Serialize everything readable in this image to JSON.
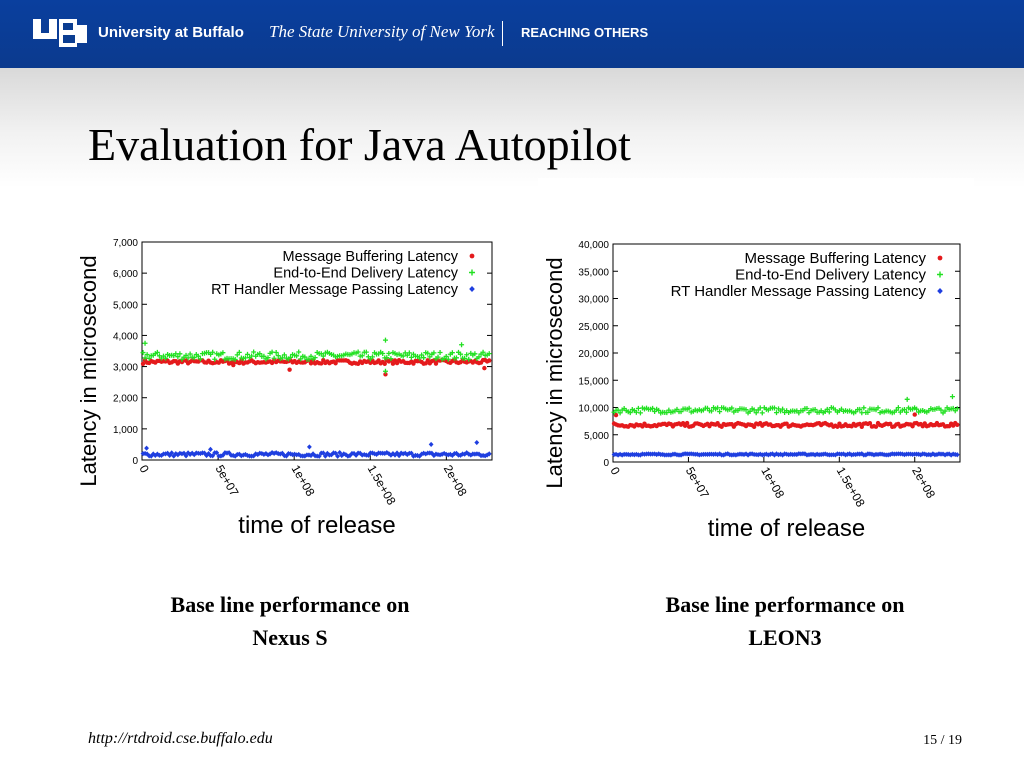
{
  "header": {
    "logo_letters": "UB",
    "university": "University at Buffalo",
    "subtitle": "The State University of New York",
    "tagline": "REACHING OTHERS"
  },
  "slide": {
    "title": "Evaluation for Java Autopilot",
    "caption_left_1": "Base line performance on",
    "caption_left_2": "Nexus S",
    "caption_right_1": "Base line performance on",
    "caption_right_2": "LEON3",
    "footer_url": "http://rtdroid.cse.buffalo.edu",
    "page_number": "15 / 19"
  },
  "colors": {
    "banner": "#0b3d91",
    "series_red": "#e41a1c",
    "series_green": "#22e022",
    "series_blue": "#1f3fe0"
  },
  "chart_data": [
    {
      "type": "scatter",
      "title": "",
      "xlabel": "time of release",
      "ylabel": "Latency in microsecond",
      "xlim": [
        0,
        230000000
      ],
      "ylim": [
        0,
        7000
      ],
      "x_ticks": [
        0,
        50000000,
        100000000,
        150000000,
        200000000
      ],
      "x_tick_labels": [
        "0",
        "5e+07",
        "1e+08",
        "1.5e+08",
        "2e+08"
      ],
      "y_ticks": [
        0,
        1000,
        2000,
        3000,
        4000,
        5000,
        6000,
        7000
      ],
      "y_tick_labels": [
        "0",
        "1,000",
        "2,000",
        "3,000",
        "4,000",
        "5,000",
        "6,000",
        "7,000"
      ],
      "legend_position": "top-right",
      "series": [
        {
          "name": "Message Buffering Latency",
          "color": "#e41a1c",
          "marker": "dot",
          "y_typical": 3150,
          "y_band": 60,
          "outliers": [
            [
              60000000,
              3050
            ],
            [
              97000000,
              2900
            ],
            [
              160000000,
              2750
            ],
            [
              225000000,
              2950
            ]
          ]
        },
        {
          "name": "End-to-End Delivery Latency",
          "color": "#22e022",
          "marker": "plus",
          "y_typical": 3350,
          "y_band": 120,
          "outliers": [
            [
              2000000,
              3750
            ],
            [
              160000000,
              3850
            ],
            [
              160000000,
              2850
            ],
            [
              210000000,
              3700
            ]
          ]
        },
        {
          "name": "RT Handler Message Passing Latency",
          "color": "#1f3fe0",
          "marker": "diamond",
          "y_typical": 180,
          "y_band": 60,
          "outliers": [
            [
              3000000,
              380
            ],
            [
              45000000,
              340
            ],
            [
              110000000,
              420
            ],
            [
              190000000,
              500
            ],
            [
              220000000,
              560
            ]
          ]
        }
      ]
    },
    {
      "type": "scatter",
      "title": "",
      "xlabel": "time of release",
      "ylabel": "Latency in microsecond",
      "xlim": [
        0,
        230000000
      ],
      "ylim": [
        0,
        40000
      ],
      "x_ticks": [
        0,
        50000000,
        100000000,
        150000000,
        200000000
      ],
      "x_tick_labels": [
        "0",
        "5e+07",
        "1e+08",
        "1.5e+08",
        "2e+08"
      ],
      "y_ticks": [
        0,
        5000,
        10000,
        15000,
        20000,
        25000,
        30000,
        35000,
        40000
      ],
      "y_tick_labels": [
        "0",
        "5,000",
        "10,000",
        "15,000",
        "20,000",
        "25,000",
        "30,000",
        "35,000",
        "40,000"
      ],
      "legend_position": "top-right",
      "series": [
        {
          "name": "Message Buffering Latency",
          "color": "#e41a1c",
          "marker": "dot",
          "y_typical": 6800,
          "y_band": 350,
          "outliers": [
            [
              2000000,
              8600
            ],
            [
              200000000,
              8700
            ]
          ]
        },
        {
          "name": "End-to-End Delivery Latency",
          "color": "#22e022",
          "marker": "plus",
          "y_typical": 9500,
          "y_band": 500,
          "outliers": [
            [
              195000000,
              11500
            ],
            [
              225000000,
              12000
            ]
          ]
        },
        {
          "name": "RT Handler Message Passing Latency",
          "color": "#1f3fe0",
          "marker": "diamond",
          "y_typical": 1400,
          "y_band": 120,
          "outliers": []
        }
      ]
    }
  ]
}
